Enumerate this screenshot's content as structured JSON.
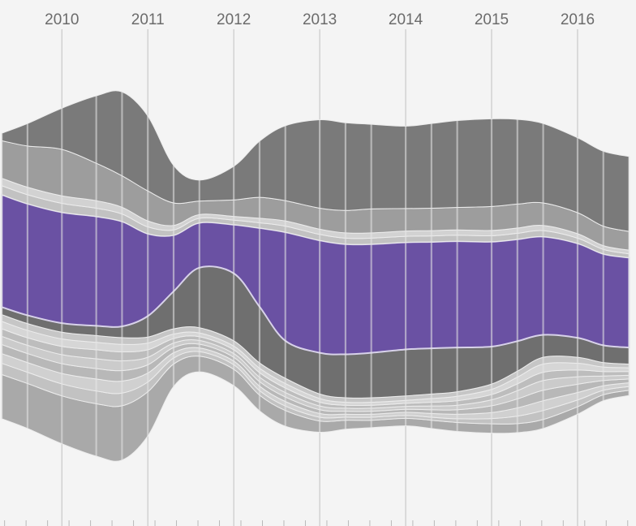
{
  "chart_data": {
    "type": "area",
    "subtype": "streamgraph",
    "title": "",
    "xlabel": "",
    "ylabel": "",
    "x_tick_labels": [
      "2010",
      "2011",
      "2012",
      "2013",
      "2014",
      "2015",
      "2016"
    ],
    "x": [
      2009.3,
      2009.6,
      2010.0,
      2010.4,
      2010.7,
      2011.0,
      2011.3,
      2011.6,
      2012.0,
      2012.3,
      2012.6,
      2013.0,
      2013.3,
      2013.6,
      2014.0,
      2014.3,
      2014.6,
      2015.0,
      2015.3,
      2015.6,
      2016.0,
      2016.3,
      2016.6
    ],
    "xlim": [
      2009.28,
      2016.68
    ],
    "ylim": [
      -650,
      650
    ],
    "grid": "vertical",
    "highlight_color": "#6a51a3",
    "series": [
      {
        "values": [
          118,
          120,
          128,
          140,
          145,
          118,
          60,
          42,
          44,
          42,
          42,
          30,
          24,
          20,
          20,
          22,
          24,
          25,
          24,
          24,
          20,
          16,
          14
        ],
        "color": "#a9a9a9"
      },
      {
        "values": [
          30,
          30,
          32,
          34,
          34,
          26,
          16,
          12,
          12,
          12,
          12,
          10,
          8,
          8,
          8,
          8,
          10,
          14,
          20,
          24,
          18,
          12,
          10
        ],
        "color": "#c2c2c2"
      },
      {
        "values": [
          26,
          26,
          28,
          32,
          32,
          24,
          14,
          10,
          10,
          12,
          12,
          10,
          8,
          8,
          8,
          10,
          12,
          16,
          22,
          26,
          20,
          12,
          10
        ],
        "color": "#d0d0d0"
      },
      {
        "values": [
          24,
          24,
          26,
          28,
          28,
          22,
          14,
          10,
          10,
          12,
          12,
          10,
          8,
          8,
          8,
          10,
          12,
          18,
          24,
          28,
          22,
          14,
          10
        ],
        "color": "#b8b8b8"
      },
      {
        "values": [
          22,
          22,
          24,
          26,
          26,
          20,
          12,
          10,
          10,
          12,
          12,
          10,
          8,
          8,
          8,
          10,
          12,
          16,
          22,
          26,
          20,
          12,
          10
        ],
        "color": "#cbcbcb"
      },
      {
        "values": [
          20,
          20,
          22,
          24,
          24,
          20,
          12,
          10,
          10,
          12,
          12,
          10,
          8,
          8,
          8,
          10,
          12,
          14,
          18,
          22,
          18,
          12,
          10
        ],
        "color": "#bdbdbd"
      },
      {
        "values": [
          20,
          20,
          20,
          20,
          20,
          18,
          12,
          10,
          10,
          12,
          12,
          10,
          8,
          8,
          8,
          10,
          12,
          14,
          18,
          22,
          18,
          12,
          10
        ],
        "color": "#d6d6d6"
      },
      {
        "values": [
          18,
          18,
          18,
          18,
          18,
          16,
          14,
          14,
          14,
          14,
          14,
          12,
          12,
          12,
          12,
          12,
          12,
          14,
          16,
          18,
          16,
          12,
          10
        ],
        "color": "#c6c6c6"
      },
      {
        "values": [
          20,
          22,
          24,
          26,
          30,
          56,
          100,
          160,
          180,
          150,
          100,
          110,
          116,
          120,
          124,
          122,
          118,
          100,
          80,
          60,
          52,
          46,
          44
        ],
        "color": "#6f6f6f"
      },
      {
        "values": [
          300,
          298,
          296,
          292,
          280,
          220,
          150,
          120,
          130,
          210,
          290,
          300,
          294,
          290,
          286,
          284,
          284,
          280,
          272,
          262,
          252,
          244,
          240
        ],
        "color": "#6a51a3",
        "highlight": true
      },
      {
        "values": [
          24,
          24,
          24,
          22,
          20,
          18,
          14,
          12,
          12,
          14,
          16,
          16,
          16,
          16,
          16,
          16,
          16,
          16,
          16,
          16,
          14,
          12,
          10
        ],
        "color": "#c2c2c2"
      },
      {
        "values": [
          20,
          20,
          20,
          20,
          18,
          16,
          12,
          10,
          10,
          12,
          14,
          14,
          14,
          14,
          14,
          14,
          14,
          14,
          14,
          14,
          12,
          10,
          10
        ],
        "color": "#d2d2d2"
      },
      {
        "values": [
          100,
          110,
          124,
          100,
          84,
          80,
          60,
          36,
          44,
          56,
          54,
          56,
          60,
          64,
          60,
          60,
          60,
          64,
          64,
          60,
          56,
          52,
          50
        ],
        "color": "#9d9d9d"
      },
      {
        "values": [
          20,
          60,
          110,
          180,
          224,
          200,
          100,
          56,
          90,
          150,
          200,
          236,
          234,
          226,
          220,
          226,
          232,
          234,
          226,
          212,
          200,
          200,
          200
        ],
        "color": "#7a7a7a"
      }
    ]
  }
}
